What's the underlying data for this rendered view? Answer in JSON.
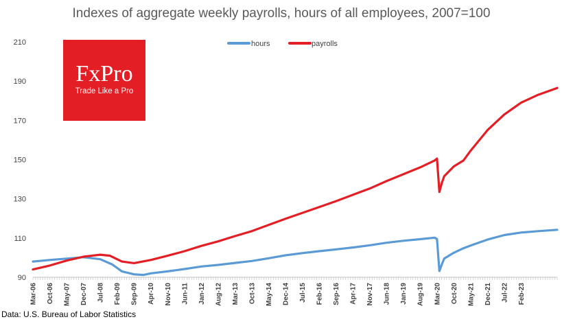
{
  "chart_data": {
    "type": "line",
    "title": "Indexes of aggregate weekly payrolls, hours of all employees, 2007=100",
    "xlabel": "",
    "ylabel": "",
    "ylim": [
      90,
      210
    ],
    "yticks": [
      90,
      110,
      130,
      150,
      170,
      190,
      210
    ],
    "grid": false,
    "legend_position": "top-center",
    "x_start": "Mar-06",
    "x_end": "May-24",
    "x_tick_labels": [
      "Mar-06",
      "Oct-06",
      "May-07",
      "Dec-07",
      "Jul-08",
      "Feb-09",
      "Sep-09",
      "Apr-10",
      "Nov-10",
      "Jun-11",
      "Jan-12",
      "Aug-12",
      "Mar-13",
      "Oct-13",
      "May-14",
      "Dec-14",
      "Jul-15",
      "Feb-16",
      "Sep-16",
      "Apr-17",
      "Nov-17",
      "Jun-18",
      "Jan-19",
      "Aug-19",
      "Mar-20",
      "Oct-20",
      "May-21",
      "Dec-21",
      "Jul-22",
      "Feb-23"
    ],
    "series": [
      {
        "name": "hours",
        "color": "#5B9BD5",
        "points": [
          [
            "Mar-06",
            98.0
          ],
          [
            "Oct-06",
            98.8
          ],
          [
            "May-07",
            99.5
          ],
          [
            "Dec-07",
            100.2
          ],
          [
            "Jul-08",
            99.2
          ],
          [
            "Dec-08",
            96.5
          ],
          [
            "Apr-09",
            93.0
          ],
          [
            "Sep-09",
            91.5
          ],
          [
            "Jan-10",
            91.2
          ],
          [
            "Apr-10",
            92.0
          ],
          [
            "Nov-10",
            93.0
          ],
          [
            "Jun-11",
            94.2
          ],
          [
            "Jan-12",
            95.5
          ],
          [
            "Aug-12",
            96.3
          ],
          [
            "Mar-13",
            97.3
          ],
          [
            "Oct-13",
            98.3
          ],
          [
            "May-14",
            99.7
          ],
          [
            "Dec-14",
            101.2
          ],
          [
            "Jul-15",
            102.3
          ],
          [
            "Feb-16",
            103.3
          ],
          [
            "Sep-16",
            104.2
          ],
          [
            "Apr-17",
            105.2
          ],
          [
            "Nov-17",
            106.3
          ],
          [
            "Jun-18",
            107.6
          ],
          [
            "Jan-19",
            108.6
          ],
          [
            "Aug-19",
            109.4
          ],
          [
            "Feb-20",
            110.2
          ],
          [
            "Mar-20",
            109.5
          ],
          [
            "Apr-20",
            93.2
          ],
          [
            "May-20",
            96.5
          ],
          [
            "Jun-20",
            99.5
          ],
          [
            "Oct-20",
            102.5
          ],
          [
            "Feb-21",
            104.8
          ],
          [
            "May-21",
            106.2
          ],
          [
            "Dec-21",
            109.2
          ],
          [
            "Jul-22",
            111.5
          ],
          [
            "Feb-23",
            112.8
          ],
          [
            "Sep-23",
            113.5
          ],
          [
            "May-24",
            114.2
          ]
        ]
      },
      {
        "name": "payrolls",
        "color": "#E31E24",
        "points": [
          [
            "Mar-06",
            94.0
          ],
          [
            "Oct-06",
            96.0
          ],
          [
            "May-07",
            98.5
          ],
          [
            "Dec-07",
            100.5
          ],
          [
            "Jul-08",
            101.5
          ],
          [
            "Nov-08",
            101.0
          ],
          [
            "Apr-09",
            98.0
          ],
          [
            "Sep-09",
            97.2
          ],
          [
            "Apr-10",
            98.8
          ],
          [
            "Nov-10",
            101.0
          ],
          [
            "Jun-11",
            103.3
          ],
          [
            "Jan-12",
            106.0
          ],
          [
            "Aug-12",
            108.3
          ],
          [
            "Mar-13",
            111.0
          ],
          [
            "Oct-13",
            113.5
          ],
          [
            "May-14",
            116.7
          ],
          [
            "Dec-14",
            119.8
          ],
          [
            "Jul-15",
            122.8
          ],
          [
            "Feb-16",
            125.8
          ],
          [
            "Sep-16",
            128.8
          ],
          [
            "Apr-17",
            132.0
          ],
          [
            "Nov-17",
            135.2
          ],
          [
            "Jun-18",
            139.0
          ],
          [
            "Jan-19",
            142.5
          ],
          [
            "Aug-19",
            146.0
          ],
          [
            "Feb-20",
            149.5
          ],
          [
            "Mar-20",
            150.5
          ],
          [
            "Apr-20",
            133.5
          ],
          [
            "May-20",
            138.0
          ],
          [
            "Jun-20",
            141.5
          ],
          [
            "Oct-20",
            146.5
          ],
          [
            "Feb-21",
            149.5
          ],
          [
            "May-21",
            154.5
          ],
          [
            "Dec-21",
            165.0
          ],
          [
            "Jul-22",
            173.0
          ],
          [
            "Feb-23",
            179.0
          ],
          [
            "Sep-23",
            183.0
          ],
          [
            "May-24",
            186.5
          ]
        ]
      }
    ]
  },
  "logo": {
    "brand": "FxPro",
    "tagline": "Trade Like a Pro",
    "background": "#E31E24"
  },
  "source": "Data: U.S. Bureau of Labor Statistics"
}
